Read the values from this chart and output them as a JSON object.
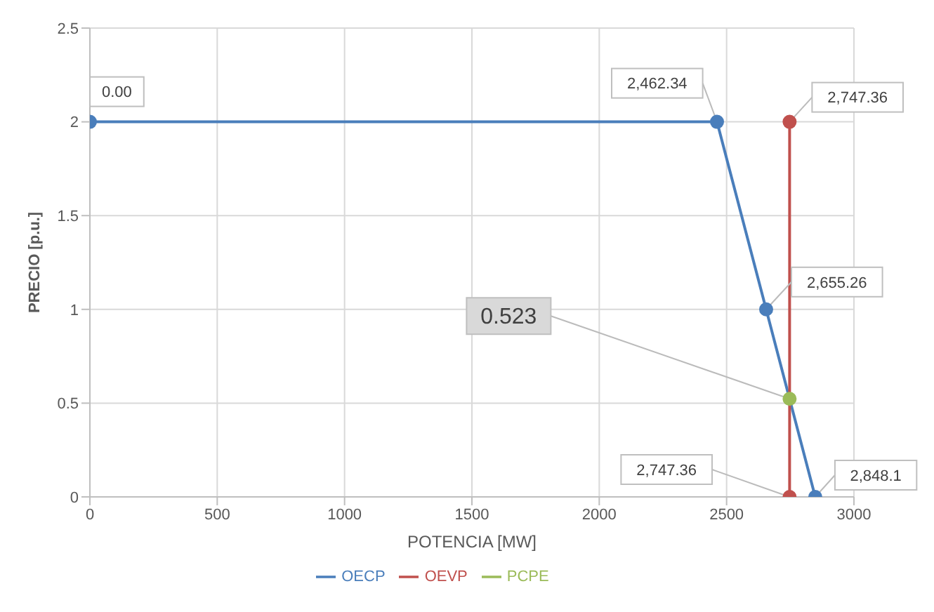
{
  "chart_data": {
    "type": "line",
    "xlabel": "POTENCIA [MW]",
    "ylabel": "PRECIO [p.u.]",
    "xlim": [
      0,
      3000
    ],
    "xticks": [
      0,
      500,
      1000,
      1500,
      2000,
      2500,
      3000
    ],
    "ylim": [
      0,
      2.5
    ],
    "yticks": [
      0,
      0.5,
      1,
      1.5,
      2,
      2.5
    ],
    "series": [
      {
        "name": "OECP",
        "color": "#4a7ebb",
        "x": [
          0,
          2462.34,
          2655.26,
          2848.1
        ],
        "values": [
          2,
          2,
          1,
          0
        ]
      },
      {
        "name": "OEVP",
        "color": "#c0504d",
        "x": [
          2747.36,
          2747.36
        ],
        "values": [
          2,
          0
        ]
      },
      {
        "name": "PCPE",
        "color": "#9bbb59",
        "x": [
          2747.36
        ],
        "values": [
          0.523
        ]
      }
    ],
    "annotations": [
      {
        "text": "0.00",
        "x": 0,
        "y": 2
      },
      {
        "text": "2,462.34",
        "x": 2462.34,
        "y": 2
      },
      {
        "text": "2,655.26",
        "x": 2655.26,
        "y": 1
      },
      {
        "text": "2,848.1",
        "x": 2848.1,
        "y": 0
      },
      {
        "text": "2,747.36",
        "x": 2747.36,
        "y": 2
      },
      {
        "text": "2,747.36",
        "x": 2747.36,
        "y": 0
      },
      {
        "text": "0.523",
        "x": 2747.36,
        "y": 0.523
      }
    ],
    "grid": true,
    "legend": "bottom",
    "marker": "circle",
    "line_style": "solid"
  }
}
